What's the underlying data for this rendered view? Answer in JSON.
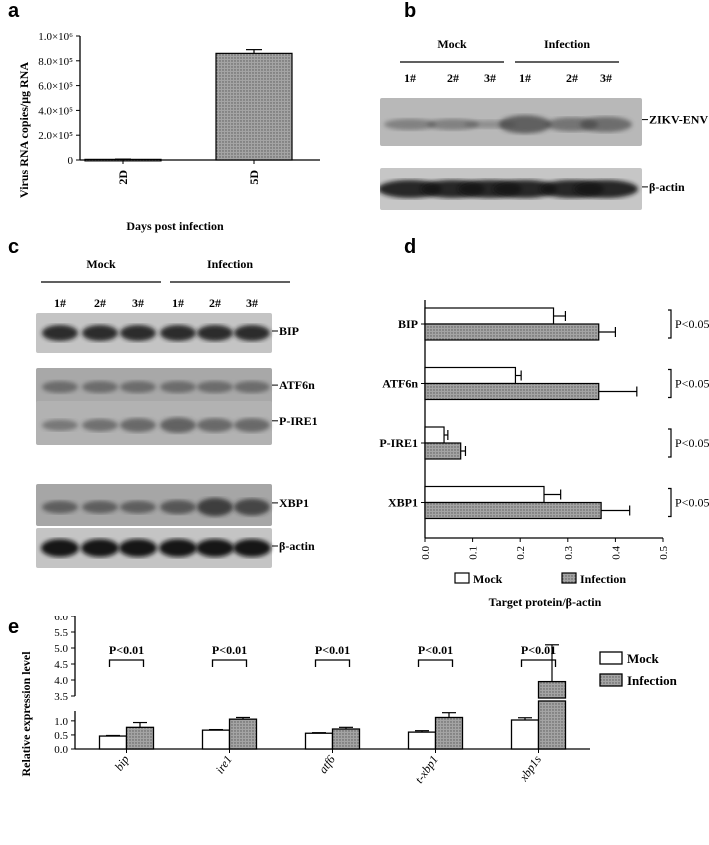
{
  "panels": {
    "a": "a",
    "b": "b",
    "c": "c",
    "d": "d",
    "e": "e"
  },
  "chart_data": [
    {
      "panel": "a",
      "type": "bar",
      "categories": [
        "2D",
        "5D"
      ],
      "values": [
        5000,
        860000
      ],
      "errors": [
        2000,
        30000
      ],
      "ylabel": "Virus RNA copies/μg RNA",
      "xlabel": "Days post infection",
      "ylim": [
        0,
        1000000
      ],
      "yticks": [
        "0",
        "2.0×10⁵",
        "4.0×10⁵",
        "6.0×10⁵",
        "8.0×10⁵",
        "1.0×10⁶"
      ],
      "grid": false
    },
    {
      "panel": "d",
      "type": "bar",
      "orientation": "horizontal",
      "categories": [
        "BIP",
        "ATF6n",
        "P-IRE1",
        "XBP1"
      ],
      "series": [
        {
          "name": "Mock",
          "values": [
            0.27,
            0.19,
            0.04,
            0.25
          ],
          "errors": [
            0.025,
            0.012,
            0.008,
            0.035
          ],
          "color": "#ffffff"
        },
        {
          "name": "Infection",
          "values": [
            0.365,
            0.365,
            0.075,
            0.37
          ],
          "errors": [
            0.035,
            0.08,
            0.01,
            0.06
          ],
          "color": "#999999"
        }
      ],
      "annotations": [
        "P<0.05",
        "P<0.05",
        "P<0.05",
        "P<0.05"
      ],
      "xlabel": "Target protein/β-actin",
      "xlim": [
        0,
        0.5
      ],
      "xticks": [
        "0.0",
        "0.1",
        "0.2",
        "0.3",
        "0.4",
        "0.5"
      ],
      "legend_position": "bottom"
    },
    {
      "panel": "e",
      "type": "bar",
      "categories": [
        "bip",
        "ire1",
        "atf6",
        "t-xbp1",
        "xbp1s"
      ],
      "series": [
        {
          "name": "Mock",
          "values": [
            0.46,
            0.67,
            0.56,
            0.6,
            1.03
          ],
          "errors": [
            0.02,
            0.02,
            0.02,
            0.05,
            0.08
          ],
          "color": "#ffffff"
        },
        {
          "name": "Infection",
          "values": [
            0.77,
            1.06,
            0.71,
            1.12,
            3.95
          ],
          "errors": [
            0.17,
            0.06,
            0.06,
            0.17,
            1.15
          ],
          "color": "#999999"
        }
      ],
      "annotations": [
        "P<0.01",
        "P<0.01",
        "P<0.01",
        "P<0.01",
        "P<0.01"
      ],
      "ylabel": "Relative expression level",
      "yticks_lower": [
        "0.0",
        "0.5",
        "1.0"
      ],
      "yticks_upper": [
        "3.5",
        "4.0",
        "4.5",
        "5.0",
        "5.5",
        "6.0"
      ],
      "axis_break": [
        1.4,
        3.5
      ],
      "legend_position": "top-right"
    }
  ],
  "blot_b": {
    "groups": [
      "Mock",
      "Infection"
    ],
    "lanes": [
      "1#",
      "2#",
      "3#",
      "1#",
      "2#",
      "3#"
    ],
    "bands": [
      "ZIKV-ENV",
      "β-actin"
    ]
  },
  "blot_c": {
    "groups": [
      "Mock",
      "Infection"
    ],
    "lanes": [
      "1#",
      "2#",
      "3#",
      "1#",
      "2#",
      "3#"
    ],
    "bands": [
      "BIP",
      "ATF6n",
      "P-IRE1",
      "XBP1",
      "β-actin"
    ]
  }
}
